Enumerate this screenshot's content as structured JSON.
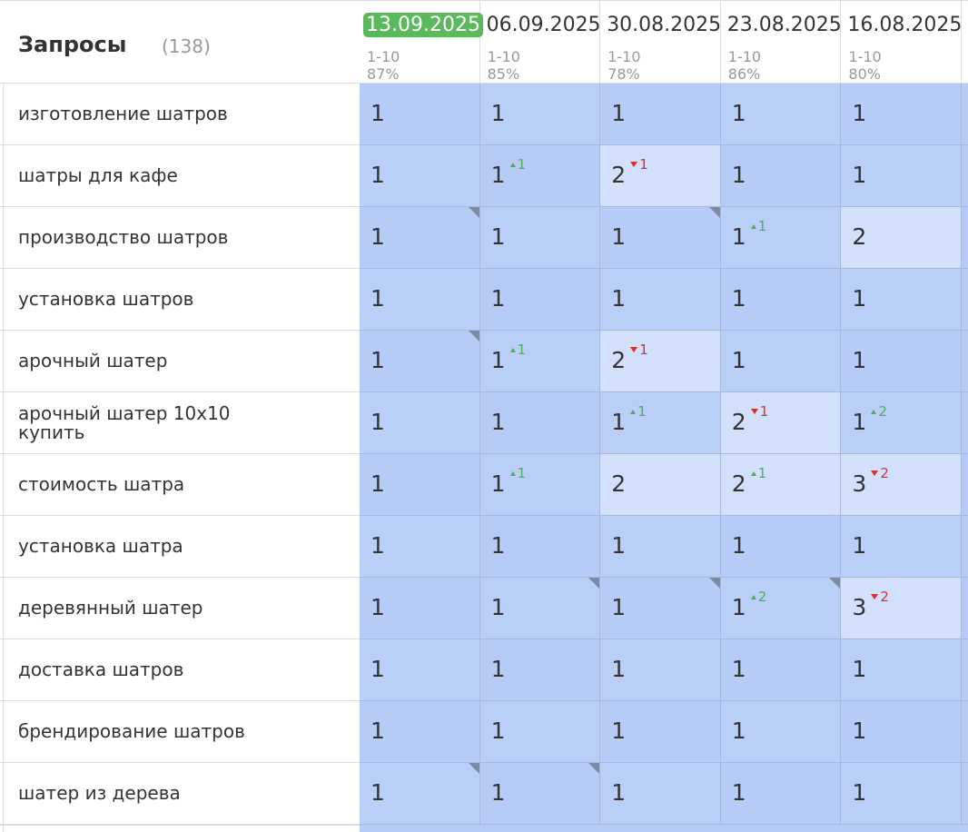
{
  "header": {
    "title": "Запросы",
    "count": "(138)"
  },
  "columns": [
    {
      "date": "13.09.2025",
      "range": "1-10",
      "percent": "87%",
      "current": true
    },
    {
      "date": "06.09.2025",
      "range": "1-10",
      "percent": "85%"
    },
    {
      "date": "30.08.2025",
      "range": "1-10",
      "percent": "78%"
    },
    {
      "date": "23.08.2025",
      "range": "1-10",
      "percent": "86%"
    },
    {
      "date": "16.08.2025",
      "range": "1-10",
      "percent": "80%"
    }
  ],
  "rows": [
    {
      "query": "изготовление шатров",
      "cells": [
        {
          "value": 1
        },
        {
          "value": 1
        },
        {
          "value": 1
        },
        {
          "value": 1
        },
        {
          "value": 1
        }
      ]
    },
    {
      "query": "шатры для кафе",
      "cells": [
        {
          "value": 1
        },
        {
          "value": 1,
          "change": 1,
          "dir": "up"
        },
        {
          "value": 2,
          "change": 1,
          "dir": "down"
        },
        {
          "value": 1
        },
        {
          "value": 1
        }
      ]
    },
    {
      "query": "производство шатров",
      "cells": [
        {
          "value": 1,
          "corner": true
        },
        {
          "value": 1
        },
        {
          "value": 1,
          "corner": true
        },
        {
          "value": 1,
          "change": 1,
          "dir": "up"
        },
        {
          "value": 2
        }
      ]
    },
    {
      "query": "установка шатров",
      "cells": [
        {
          "value": 1
        },
        {
          "value": 1
        },
        {
          "value": 1
        },
        {
          "value": 1
        },
        {
          "value": 1
        }
      ]
    },
    {
      "query": "арочный шатер",
      "cells": [
        {
          "value": 1,
          "corner": true
        },
        {
          "value": 1,
          "change": 1,
          "dir": "up"
        },
        {
          "value": 2,
          "change": 1,
          "dir": "down"
        },
        {
          "value": 1
        },
        {
          "value": 1
        }
      ]
    },
    {
      "query": "арочный шатер 10х10 купить",
      "cells": [
        {
          "value": 1
        },
        {
          "value": 1
        },
        {
          "value": 1,
          "change": 1,
          "dir": "up"
        },
        {
          "value": 2,
          "change": 1,
          "dir": "down"
        },
        {
          "value": 1,
          "change": 2,
          "dir": "up"
        }
      ]
    },
    {
      "query": "стоимость шатра",
      "cells": [
        {
          "value": 1
        },
        {
          "value": 1,
          "change": 1,
          "dir": "up"
        },
        {
          "value": 2
        },
        {
          "value": 2,
          "change": 1,
          "dir": "up"
        },
        {
          "value": 3,
          "change": 2,
          "dir": "down"
        }
      ]
    },
    {
      "query": "установка шатра",
      "cells": [
        {
          "value": 1
        },
        {
          "value": 1
        },
        {
          "value": 1
        },
        {
          "value": 1
        },
        {
          "value": 1
        }
      ]
    },
    {
      "query": "деревянный шатер",
      "cells": [
        {
          "value": 1
        },
        {
          "value": 1,
          "corner": true
        },
        {
          "value": 1,
          "corner": true
        },
        {
          "value": 1,
          "change": 2,
          "dir": "up",
          "corner": true
        },
        {
          "value": 3,
          "change": 2,
          "dir": "down"
        }
      ]
    },
    {
      "query": "доставка шатров",
      "cells": [
        {
          "value": 1
        },
        {
          "value": 1
        },
        {
          "value": 1
        },
        {
          "value": 1
        },
        {
          "value": 1
        }
      ]
    },
    {
      "query": "брендирование шатров",
      "cells": [
        {
          "value": 1
        },
        {
          "value": 1
        },
        {
          "value": 1
        },
        {
          "value": 1
        },
        {
          "value": 1
        }
      ]
    },
    {
      "query": "шатер из дерева",
      "cells": [
        {
          "value": 1,
          "corner": true
        },
        {
          "value": 1,
          "corner": true
        },
        {
          "value": 1
        },
        {
          "value": 1
        },
        {
          "value": 1
        }
      ]
    }
  ]
}
